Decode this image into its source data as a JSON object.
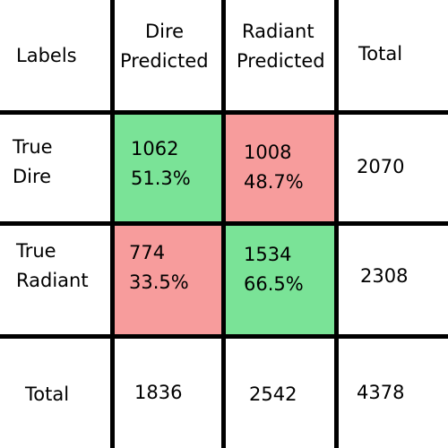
{
  "header": {
    "labels": "Labels",
    "dire_predicted_1": "Dire",
    "dire_predicted_2": "Predicted",
    "radiant_predicted_1": "Radiant",
    "radiant_predicted_2": "Predicted",
    "total": "Total"
  },
  "rows": {
    "true_dire": {
      "label_1": "True",
      "label_2": "Dire",
      "dire_count": "1062",
      "dire_pct": "51.3%",
      "radiant_count": "1008",
      "radiant_pct": "48.7%",
      "total": "2070"
    },
    "true_radiant": {
      "label_1": "True",
      "label_2": "Radiant",
      "dire_count": "774",
      "dire_pct": "33.5%",
      "radiant_count": "1534",
      "radiant_pct": "66.5%",
      "total": "2308"
    },
    "total": {
      "label": "Total",
      "dire": "1836",
      "radiant": "2542",
      "grand": "4378"
    }
  },
  "colors": {
    "correct": "#7ae397",
    "incorrect": "#f79c9c"
  }
}
